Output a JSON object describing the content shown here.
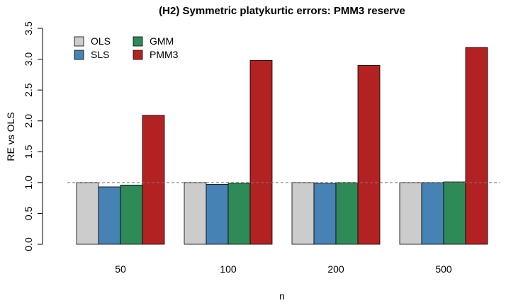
{
  "chart_data": {
    "type": "bar",
    "title": "(H2) Symmetric platykurtic errors: PMM3 reserve",
    "x_label": "n",
    "y_label": "RE vs OLS",
    "categories": [
      "50",
      "100",
      "200",
      "500"
    ],
    "series": [
      {
        "name": "OLS",
        "color": "#cccccc",
        "values": [
          1.0,
          1.0,
          1.0,
          1.0
        ]
      },
      {
        "name": "SLS",
        "color": "#4682b4",
        "values": [
          0.93,
          0.97,
          0.99,
          1.0
        ]
      },
      {
        "name": "GMM",
        "color": "#2e8b57",
        "values": [
          0.96,
          0.99,
          1.0,
          1.01
        ]
      },
      {
        "name": "PMM3",
        "color": "#b22222",
        "values": [
          2.09,
          2.98,
          2.9,
          3.19
        ]
      }
    ],
    "ylim": [
      0,
      3.5
    ],
    "yticks": [
      {
        "value": 0,
        "label": "0.0"
      },
      0.5,
      {
        "value": 1,
        "label": "1.0"
      },
      1.5,
      {
        "value": 2,
        "label": "2.0"
      },
      2.5,
      {
        "value": 3,
        "label": "3.0"
      },
      3.5
    ],
    "reference_line": 1,
    "legend": "topleft"
  }
}
